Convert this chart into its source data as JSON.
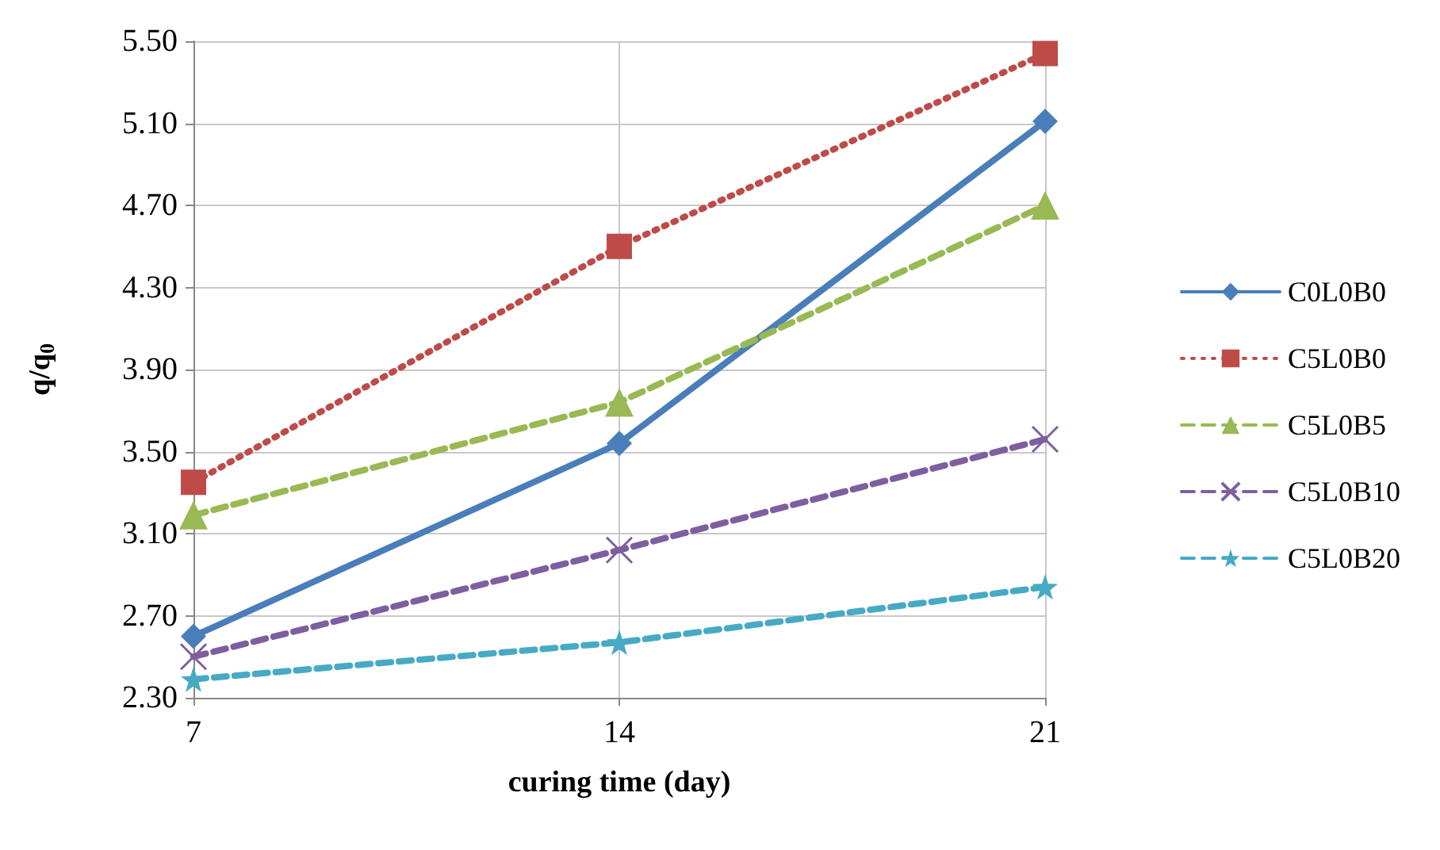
{
  "chart_data": {
    "type": "line",
    "xlabel": "curing time (day)",
    "ylabel": "q/q$_{0}$",
    "x": [
      7,
      14,
      21
    ],
    "xlim": [
      7,
      21
    ],
    "xticks": [
      7,
      14,
      21
    ],
    "ylim": [
      2.3,
      5.5
    ],
    "yticks": [
      {
        "value": 2.3,
        "label": "2.30"
      },
      {
        "value": 2.7,
        "label": "2.70"
      },
      {
        "value": 3.1,
        "label": "3.10"
      },
      {
        "value": 3.5,
        "label": "3.50"
      },
      {
        "value": 3.9,
        "label": "3.90"
      },
      {
        "value": 4.3,
        "label": "4.30"
      },
      {
        "value": 4.7,
        "label": "4.70"
      },
      {
        "value": 5.1,
        "label": "5.10"
      },
      {
        "value": 5.5,
        "label": "5.50"
      }
    ],
    "grid": true,
    "legend": "right",
    "series": [
      {
        "name": "C0L0B0",
        "color": "#4a7ebb",
        "marker": "diamond",
        "line_style": "solid",
        "values": [
          2.6,
          3.54,
          5.11
        ]
      },
      {
        "name": "C5L0B0",
        "color": "#be4b48",
        "marker": "square",
        "line_style": "dotted",
        "values": [
          3.35,
          4.5,
          5.44
        ]
      },
      {
        "name": "C5L0B5",
        "color": "#98b954",
        "marker": "triangle",
        "line_style": "dashed",
        "values": [
          3.19,
          3.74,
          4.7
        ]
      },
      {
        "name": "C5L0B10",
        "color": "#7d5fa0",
        "marker": "cross",
        "line_style": "dashed",
        "values": [
          2.5,
          3.02,
          3.56
        ]
      },
      {
        "name": "C5L0B20",
        "color": "#46aac5",
        "marker": "star",
        "line_style": "dashed",
        "values": [
          2.39,
          2.57,
          2.84
        ]
      }
    ]
  }
}
